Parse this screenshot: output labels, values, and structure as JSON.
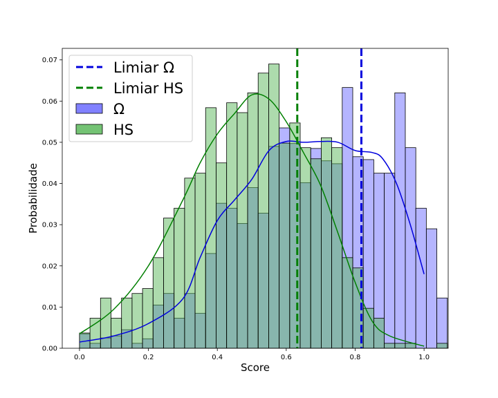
{
  "chart_data": {
    "type": "bar",
    "xlabel": "Score",
    "ylabel": "Probabilidade",
    "xlim": [
      -0.05,
      1.07
    ],
    "ylim": [
      0,
      0.0728
    ],
    "x_ticks": [
      0.0,
      0.2,
      0.4,
      0.6,
      0.8,
      1.0
    ],
    "x_tick_labels": [
      "0.0",
      "0.2",
      "0.4",
      "0.6",
      "0.8",
      "1.0"
    ],
    "y_ticks": [
      0.0,
      0.01,
      0.02,
      0.03,
      0.04,
      0.05,
      0.06,
      0.07
    ],
    "y_tick_labels": [
      "0.00",
      "0.01",
      "0.02",
      "0.03",
      "0.04",
      "0.05",
      "0.06",
      "0.07"
    ],
    "grid": false,
    "legend_position": "top-left",
    "bin_edges_start": 0.0,
    "bin_width": 0.0305,
    "series": [
      {
        "name": "Ω",
        "color": "#6b6bff",
        "kde_color": "#0000dd",
        "values": [
          0.0035,
          0.0012,
          0.0025,
          0.003,
          0.0045,
          0.0012,
          0.0023,
          0.0105,
          0.0133,
          0.0073,
          0.0133,
          0.0085,
          0.023,
          0.0352,
          0.034,
          0.0303,
          0.039,
          0.0328,
          0.049,
          0.0535,
          0.0497,
          0.0402,
          0.0485,
          0.0455,
          0.0448,
          0.0633,
          0.0465,
          0.0458,
          0.0425,
          0.0425,
          0.062,
          0.0487,
          0.034,
          0.029,
          0.0122
        ],
        "kde": [
          [
            0.0,
            0.0015
          ],
          [
            0.1,
            0.003
          ],
          [
            0.2,
            0.006
          ],
          [
            0.3,
            0.012
          ],
          [
            0.35,
            0.022
          ],
          [
            0.4,
            0.031
          ],
          [
            0.45,
            0.036
          ],
          [
            0.5,
            0.041
          ],
          [
            0.55,
            0.048
          ],
          [
            0.6,
            0.0502
          ],
          [
            0.65,
            0.05
          ],
          [
            0.7,
            0.0502
          ],
          [
            0.75,
            0.05
          ],
          [
            0.8,
            0.048
          ],
          [
            0.85,
            0.0475
          ],
          [
            0.88,
            0.046
          ],
          [
            0.92,
            0.04
          ],
          [
            0.96,
            0.03
          ],
          [
            1.0,
            0.018
          ]
        ]
      },
      {
        "name": "HS",
        "color": "#5cb85c",
        "kde_color": "#007f00",
        "values": [
          0.0037,
          0.0073,
          0.0122,
          0.0073,
          0.0122,
          0.0133,
          0.0145,
          0.022,
          0.0316,
          0.034,
          0.0413,
          0.0425,
          0.0584,
          0.045,
          0.0596,
          0.0572,
          0.062,
          0.0668,
          0.069,
          0.0498,
          0.0547,
          0.0487,
          0.046,
          0.0511,
          0.0487,
          0.022,
          0.0195,
          0.0097,
          0.0073,
          0.0012,
          0.0012,
          0.0012,
          0.0,
          0.0,
          0.0012
        ],
        "kde": [
          [
            0.0,
            0.0035
          ],
          [
            0.1,
            0.0095
          ],
          [
            0.2,
            0.02
          ],
          [
            0.3,
            0.036
          ],
          [
            0.35,
            0.045
          ],
          [
            0.4,
            0.052
          ],
          [
            0.45,
            0.057
          ],
          [
            0.5,
            0.0615
          ],
          [
            0.55,
            0.0605
          ],
          [
            0.6,
            0.055
          ],
          [
            0.65,
            0.0475
          ],
          [
            0.7,
            0.0395
          ],
          [
            0.75,
            0.028
          ],
          [
            0.8,
            0.016
          ],
          [
            0.85,
            0.0065
          ],
          [
            0.9,
            0.003
          ],
          [
            1.0,
            0.0005
          ]
        ]
      }
    ],
    "threshold_lines": [
      {
        "name": "Limiar Ω",
        "x": 0.818,
        "color": "#0000dd"
      },
      {
        "name": "Limiar HS",
        "x": 0.632,
        "color": "#007f00"
      }
    ],
    "legend": [
      {
        "label": "Limiar Ω",
        "kind": "dashed-line",
        "color": "#0000dd"
      },
      {
        "label": "Limiar HS",
        "kind": "dashed-line",
        "color": "#007f00"
      },
      {
        "label": "Ω",
        "kind": "patch",
        "color": "#6b6bff"
      },
      {
        "label": "HS",
        "kind": "patch",
        "color": "#5cb85c"
      }
    ]
  }
}
